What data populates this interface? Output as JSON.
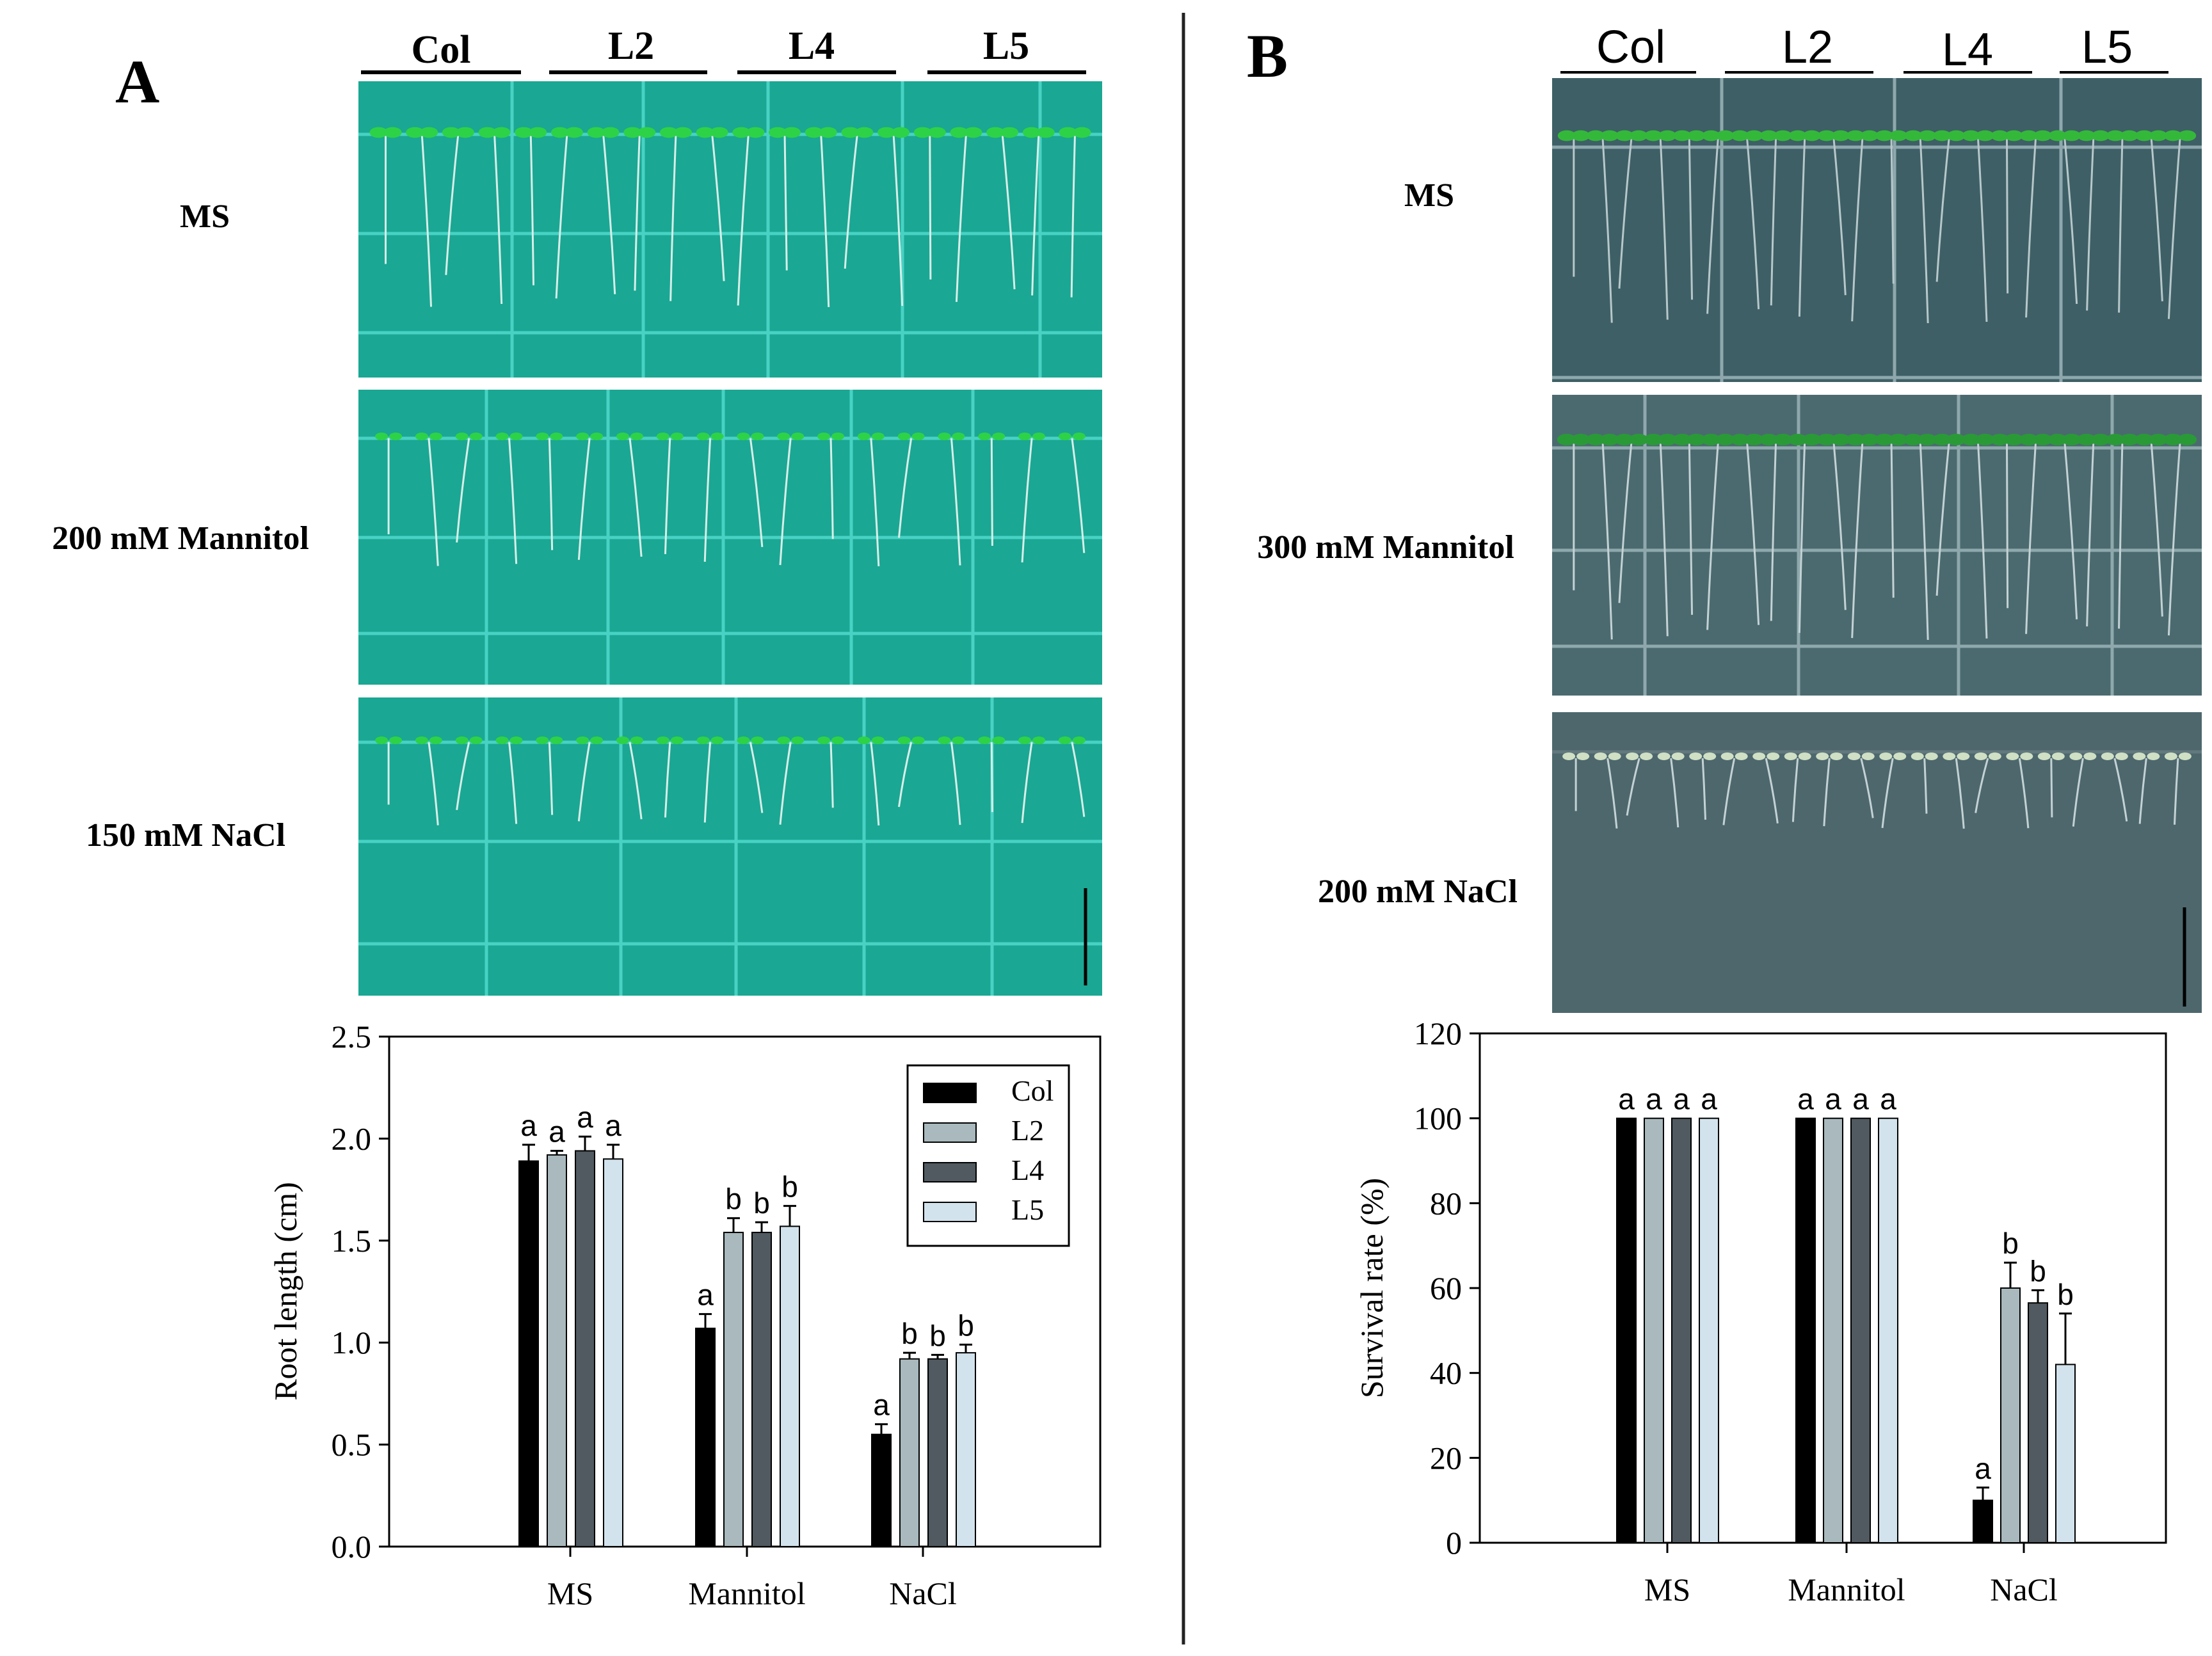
{
  "panel_a": {
    "letter": "A",
    "genotypes": [
      "Col",
      "L2",
      "L4",
      "L5"
    ],
    "conditions": [
      "MS",
      "200 mM Mannitol",
      "150 mM NaCl"
    ]
  },
  "panel_b": {
    "letter": "B",
    "genotypes": [
      "Col",
      "L2",
      "L4",
      "L5"
    ],
    "conditions": [
      "MS",
      "300 mM Mannitol",
      "200 mM NaCl"
    ]
  },
  "colors": {
    "Col": "#000000",
    "L2": "#a9b9bd",
    "L4": "#505a60",
    "L5": "#d3e3ed",
    "plate_a": "#1aa793",
    "plate_b": "#3e5f66"
  },
  "chart_data": [
    {
      "type": "bar",
      "panel": "A",
      "categories": [
        "MS",
        "Mannitol",
        "NaCl"
      ],
      "ylabel": "Root length (cm)",
      "ylim": [
        0,
        2.5
      ],
      "yticks": [
        "0.0",
        "0.5",
        "1.0",
        "1.5",
        "2.0",
        "2.5"
      ],
      "legend_position": "top-right",
      "series": [
        {
          "name": "Col",
          "values": [
            1.89,
            1.07,
            0.55
          ],
          "errors": [
            0.08,
            0.07,
            0.05
          ],
          "letters": [
            "a",
            "a",
            "a"
          ]
        },
        {
          "name": "L2",
          "values": [
            1.92,
            1.54,
            0.92
          ],
          "errors": [
            0.02,
            0.07,
            0.03
          ],
          "letters": [
            "a",
            "b",
            "b"
          ]
        },
        {
          "name": "L4",
          "values": [
            1.94,
            1.54,
            0.92
          ],
          "errors": [
            0.07,
            0.05,
            0.02
          ],
          "letters": [
            "a",
            "b",
            "b"
          ]
        },
        {
          "name": "L5",
          "values": [
            1.9,
            1.57,
            0.95
          ],
          "errors": [
            0.07,
            0.1,
            0.04
          ],
          "letters": [
            "a",
            "b",
            "b"
          ]
        }
      ]
    },
    {
      "type": "bar",
      "panel": "B",
      "categories": [
        "MS",
        "Mannitol",
        "NaCl"
      ],
      "ylabel": "Survival rate (%)",
      "ylim": [
        0,
        120
      ],
      "yticks": [
        "0",
        "20",
        "40",
        "60",
        "80",
        "100",
        "120"
      ],
      "series": [
        {
          "name": "Col",
          "values": [
            100,
            100,
            10
          ],
          "errors": [
            0,
            0,
            3
          ],
          "letters": [
            "a",
            "a",
            "a"
          ]
        },
        {
          "name": "L2",
          "values": [
            100,
            100,
            60
          ],
          "errors": [
            0,
            0,
            6
          ],
          "letters": [
            "a",
            "a",
            "b"
          ]
        },
        {
          "name": "L4",
          "values": [
            100,
            100,
            56.5
          ],
          "errors": [
            0,
            0,
            3
          ],
          "letters": [
            "a",
            "a",
            "b"
          ]
        },
        {
          "name": "L5",
          "values": [
            100,
            100,
            42
          ],
          "errors": [
            0,
            0,
            12
          ],
          "letters": [
            "a",
            "a",
            "b"
          ]
        }
      ]
    }
  ]
}
